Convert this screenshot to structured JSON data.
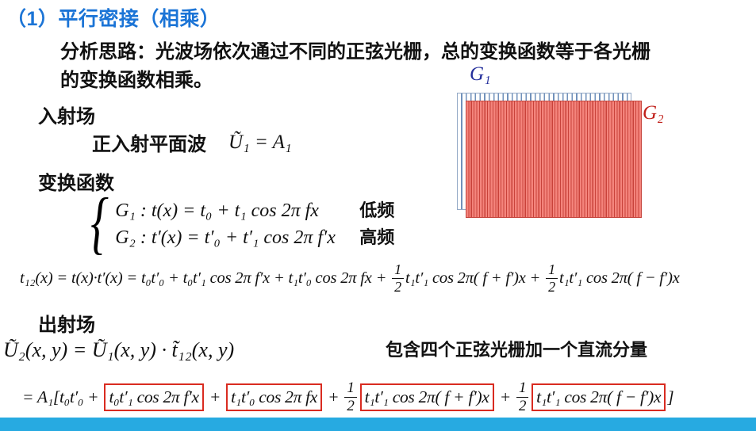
{
  "slide": {
    "title": "（1）平行密接（相乘）",
    "intro_lines": [
      "分析思路：光波场依次通过不同的正弦光栅，总的变换函数等于各光栅",
      "的变换函数相乘。"
    ]
  },
  "sections": {
    "incident": {
      "heading": "入射场",
      "label": "正入射平面波",
      "formula": "Ũ₁ = A₁"
    },
    "transform": {
      "heading": "变换函数",
      "brace": "{",
      "rows": [
        {
          "formula": "G₁ : t(x) = t₀ + t₁ cos 2π fx",
          "tag": "低频"
        },
        {
          "formula": "G₂ : t′(x) = t′₀ + t′₁ cos 2π f′x",
          "tag": "高频"
        }
      ]
    },
    "exit": {
      "heading": "出射场",
      "formula": "Ũ₂(x, y) = Ũ₁(x, y) · t̃₁₂(x, y)",
      "note": "包含四个正弦光栅加一个直流分量"
    }
  },
  "equations": {
    "t12": {
      "segments": [
        {
          "t": "text",
          "v": "t₁₂(x) = t(x)·t′(x) = t₀t′₀ + t₀t′₁ cos 2π f′x + t₁t′₀ cos 2π fx + "
        },
        {
          "t": "frac",
          "num": "1",
          "den": "2"
        },
        {
          "t": "text",
          "v": "t₁t′₁ cos 2π( f + f′)x + "
        },
        {
          "t": "frac",
          "num": "1",
          "den": "2"
        },
        {
          "t": "text",
          "v": "t₁t′₁ cos 2π( f − f′)x"
        }
      ]
    },
    "output": {
      "segments": [
        {
          "t": "text",
          "v": "= A₁[t₀t′₀ + "
        },
        {
          "t": "box",
          "v": "t₀t′₁ cos 2π f′x"
        },
        {
          "t": "text",
          "v": " + "
        },
        {
          "t": "box",
          "v": "t₁t′₀ cos 2π fx"
        },
        {
          "t": "text",
          "v": " + "
        },
        {
          "t": "frac",
          "num": "1",
          "den": "2"
        },
        {
          "t": "box",
          "v": "t₁t′₁ cos 2π( f + f′)x"
        },
        {
          "t": "text",
          "v": " + "
        },
        {
          "t": "frac",
          "num": "1",
          "den": "2"
        },
        {
          "t": "box",
          "v": "t₁t′₁ cos 2π( f − f′)x"
        },
        {
          "t": "text",
          "v": "]"
        }
      ]
    }
  },
  "diagram": {
    "g1_label": "G₁",
    "g2_label": "G₂"
  },
  "colors": {
    "title_blue": "#1b74d6",
    "box_red": "#d92b20",
    "bar_cyan": "#27aae1",
    "g1_label_blue": "#232e9b",
    "g2_label_red": "#c0201a"
  }
}
